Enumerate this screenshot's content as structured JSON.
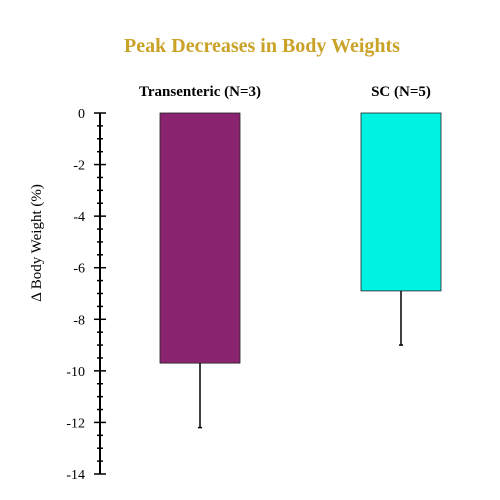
{
  "chart_data": {
    "type": "bar",
    "title": "Peak Decreases in Body Weights",
    "ylabel": "Δ Body Weight (%)",
    "xlabel": "",
    "categories": [
      "Transenteric (N=3)",
      "SC (N=5)"
    ],
    "values": [
      -9.7,
      -6.9
    ],
    "error_lower": [
      -12.2,
      -9.0
    ],
    "ylim": [
      -14,
      0
    ],
    "yticks": [
      0,
      -2,
      -4,
      -6,
      -8,
      -10,
      -12,
      -14
    ],
    "minor_tick_step": 0.5,
    "grid": false,
    "colors": {
      "title": "#C9A227",
      "bars": [
        "#8B2470",
        "#00F2E2"
      ],
      "axis": "#000000",
      "error": "#000000"
    }
  }
}
